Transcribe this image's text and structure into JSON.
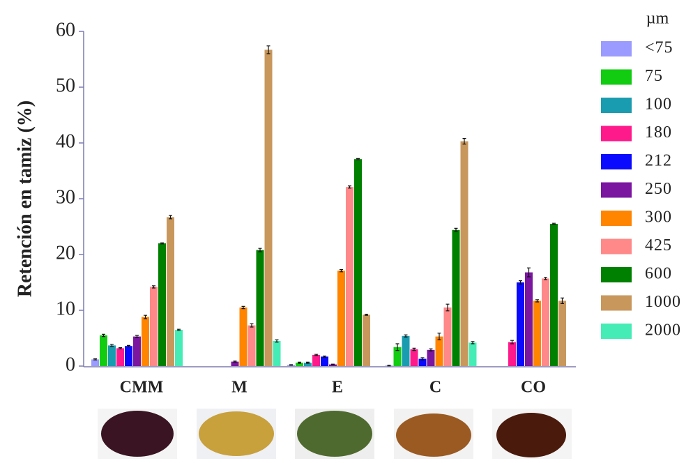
{
  "chart_data": {
    "type": "bar",
    "y_label": "Retención en tamiz (%)",
    "legend_title": "µm",
    "categories": [
      "CMM",
      "M",
      "E",
      "C",
      "CO"
    ],
    "ylim": [
      0,
      60
    ],
    "yticks": [
      0,
      10,
      20,
      30,
      40,
      50,
      60
    ],
    "series": [
      {
        "name": "<75",
        "color": "#9a9aff",
        "values": [
          1.2,
          0,
          0.2,
          0.1,
          0
        ],
        "errors": [
          0.1,
          0,
          0.05,
          0.05,
          0
        ]
      },
      {
        "name": "75",
        "color": "#11cc11",
        "values": [
          5.5,
          0,
          0.6,
          3.4,
          0
        ],
        "errors": [
          0.2,
          0,
          0.1,
          0.6,
          0
        ]
      },
      {
        "name": "100",
        "color": "#1a9cb0",
        "values": [
          3.7,
          0,
          0.6,
          5.4,
          0
        ],
        "errors": [
          0.2,
          0,
          0.1,
          0.2,
          0
        ]
      },
      {
        "name": "180",
        "color": "#ff1a8c",
        "values": [
          3.2,
          0,
          2.0,
          3.0,
          4.3
        ],
        "errors": [
          0.1,
          0,
          0.1,
          0.2,
          0.3
        ]
      },
      {
        "name": "212",
        "color": "#0a0aff",
        "values": [
          3.6,
          0,
          1.7,
          1.3,
          15.0
        ],
        "errors": [
          0.1,
          0,
          0.1,
          0.2,
          0.3
        ]
      },
      {
        "name": "250",
        "color": "#7a16a0",
        "values": [
          5.3,
          0.8,
          0.3,
          2.9,
          16.8
        ],
        "errors": [
          0.2,
          0.1,
          0.05,
          0.2,
          0.8
        ]
      },
      {
        "name": "300",
        "color": "#ff8500",
        "values": [
          8.8,
          10.5,
          17.1,
          5.3,
          11.7
        ],
        "errors": [
          0.3,
          0.2,
          0.2,
          0.6,
          0.2
        ]
      },
      {
        "name": "425",
        "color": "#ff8888",
        "values": [
          14.2,
          7.3,
          32.1,
          10.5,
          15.7
        ],
        "errors": [
          0.2,
          0.3,
          0.2,
          0.6,
          0.2
        ]
      },
      {
        "name": "600",
        "color": "#008000",
        "values": [
          22.0,
          20.8,
          37.1,
          24.4,
          25.5
        ],
        "errors": [
          0.1,
          0.3,
          0.1,
          0.3,
          0.1
        ]
      },
      {
        "name": "1000",
        "color": "#c8975c",
        "values": [
          26.7,
          56.7,
          9.2,
          40.3,
          11.7
        ],
        "errors": [
          0.3,
          0.7,
          0.1,
          0.5,
          0.5
        ]
      },
      {
        "name": "2000",
        "color": "#45ecb5",
        "values": [
          6.5,
          4.5,
          0,
          4.2,
          0
        ],
        "errors": [
          0.1,
          0.2,
          0,
          0.2,
          0
        ]
      }
    ]
  }
}
